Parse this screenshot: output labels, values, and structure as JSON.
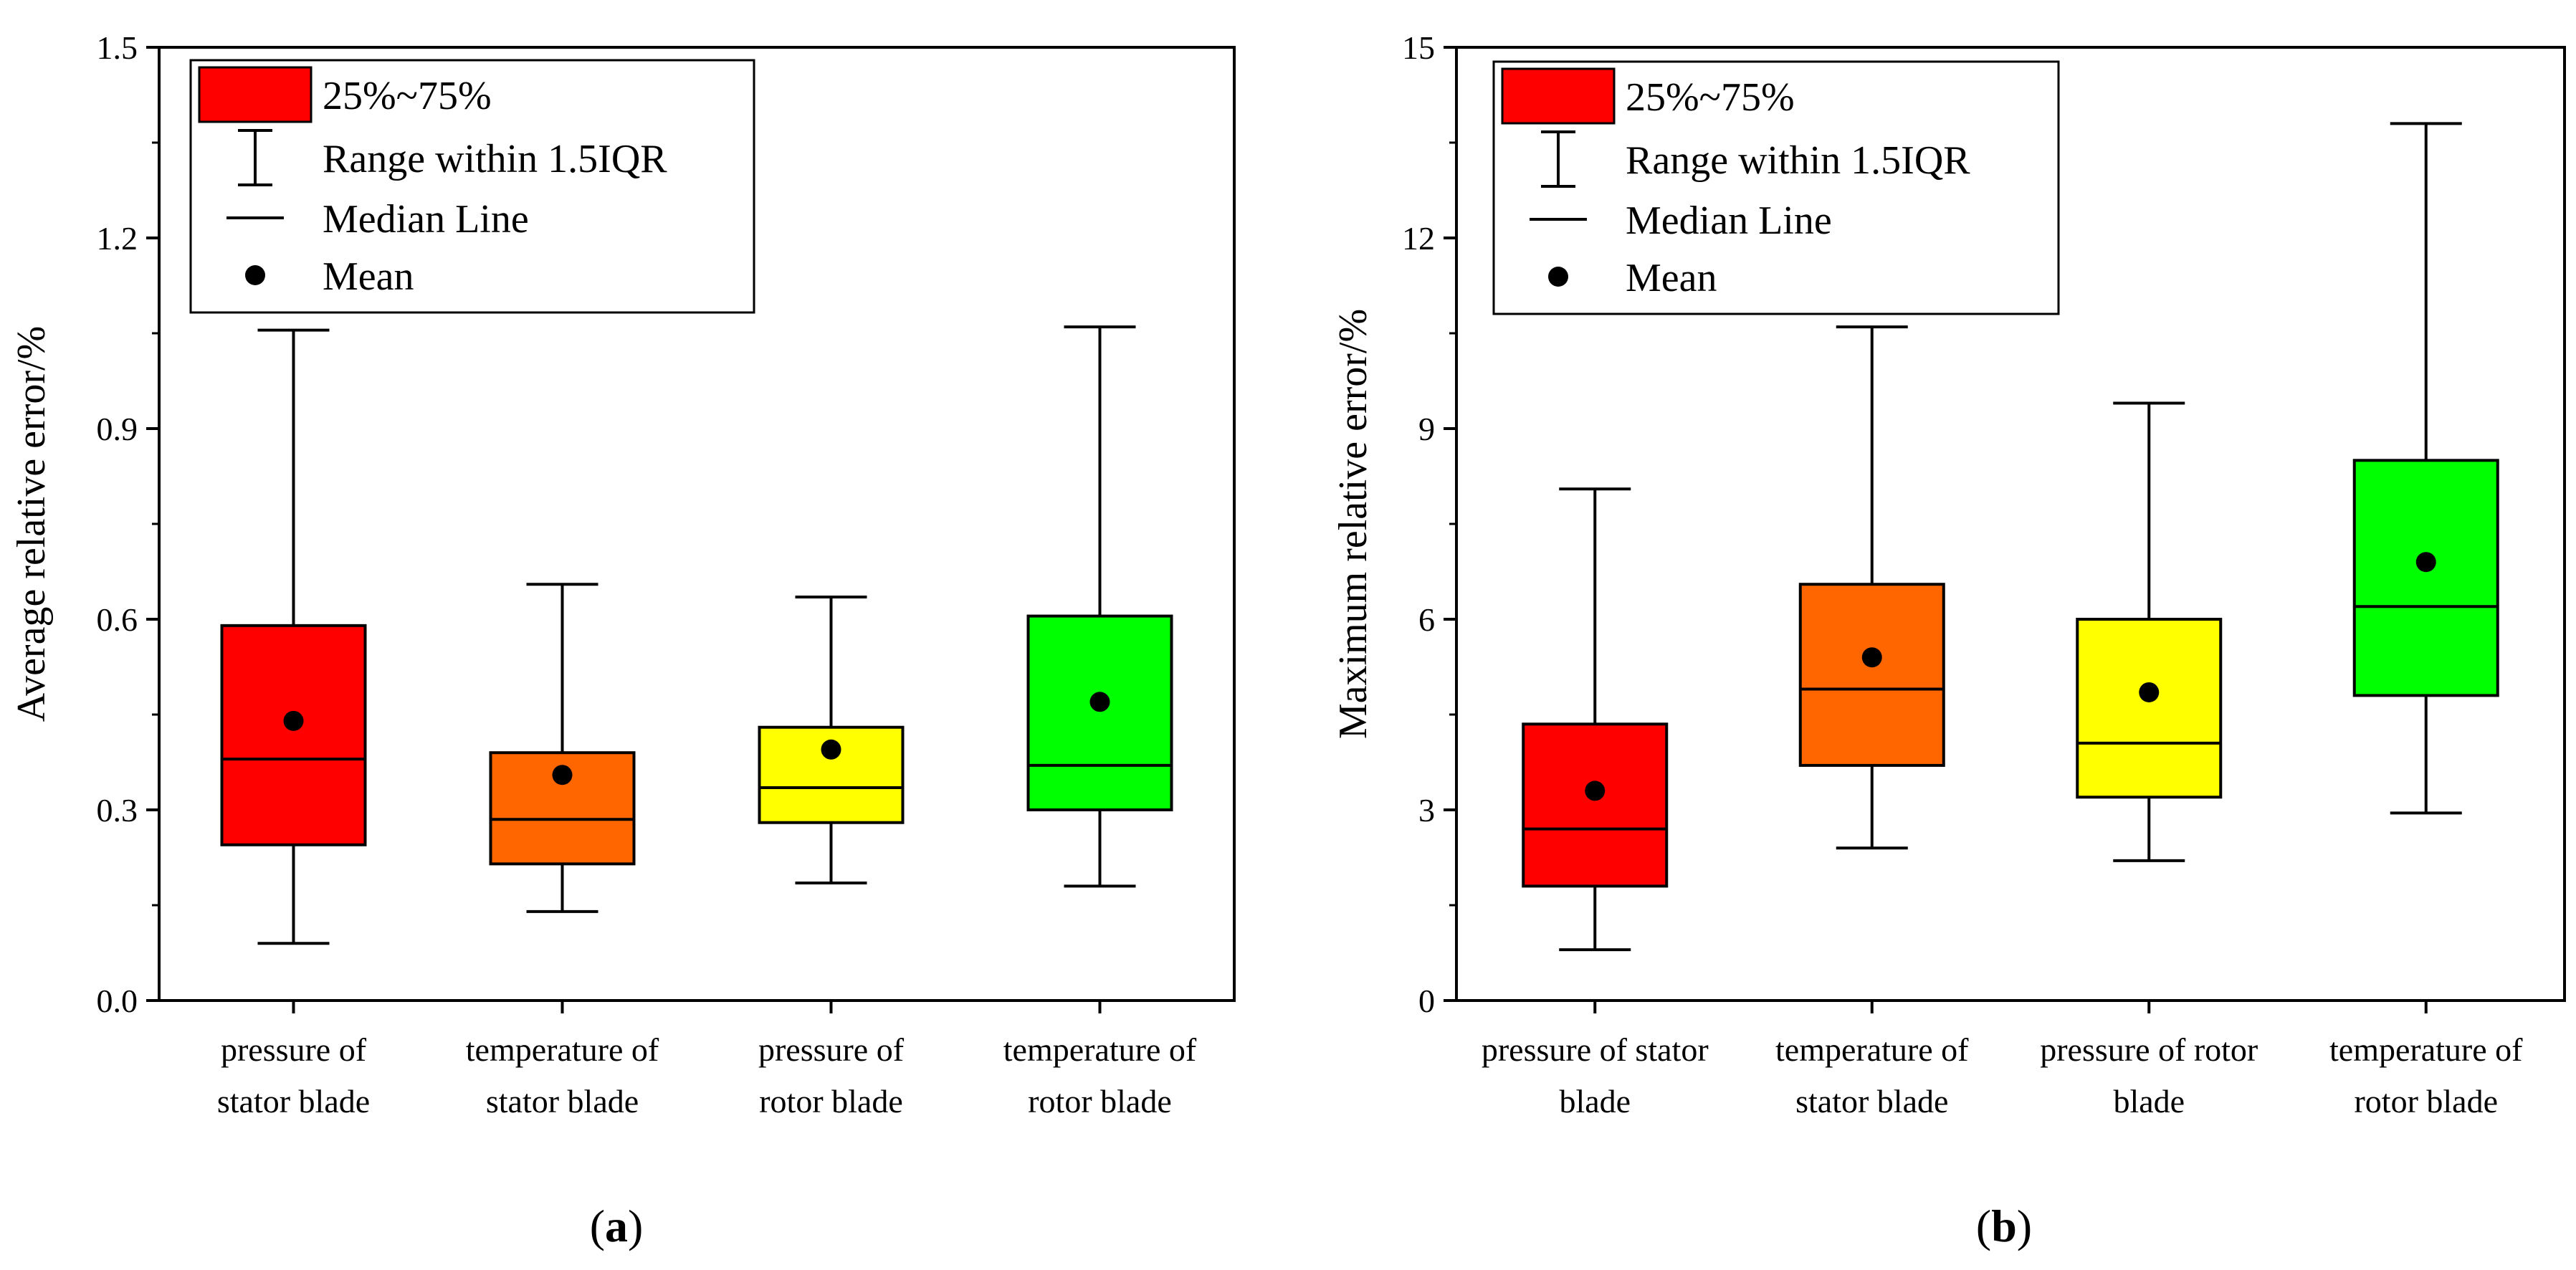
{
  "legend": {
    "box_label": "25%~75%",
    "whisker_label": "Range within 1.5IQR",
    "median_label": "Median Line",
    "mean_label": "Mean"
  },
  "colors": {
    "red": "#ff0000",
    "orange": "#ff6600",
    "yellow": "#ffff00",
    "green": "#00ff00"
  },
  "chart_data": [
    {
      "type": "box",
      "panel": "a",
      "panel_label": "(a)",
      "ylabel": "Average relative error/%",
      "ylim": [
        0,
        1.5
      ],
      "yticks": [
        "0.0",
        "0.3",
        "0.6",
        "0.9",
        "1.2",
        "1.5"
      ],
      "categories": [
        [
          "pressure of",
          "stator blade"
        ],
        [
          "temperature of",
          "stator blade"
        ],
        [
          "pressure of",
          "rotor blade"
        ],
        [
          "temperature of",
          "rotor blade"
        ]
      ],
      "series": [
        {
          "name": "pressure of stator blade",
          "color": "#ff0000",
          "min": 0.09,
          "q1": 0.245,
          "median": 0.38,
          "q3": 0.59,
          "max": 1.055,
          "mean": 0.44
        },
        {
          "name": "temperature of stator blade",
          "color": "#ff6600",
          "min": 0.14,
          "q1": 0.215,
          "median": 0.285,
          "q3": 0.39,
          "max": 0.655,
          "mean": 0.355
        },
        {
          "name": "pressure of rotor blade",
          "color": "#ffff00",
          "min": 0.185,
          "q1": 0.28,
          "median": 0.335,
          "q3": 0.43,
          "max": 0.635,
          "mean": 0.395
        },
        {
          "name": "temperature of rotor blade",
          "color": "#00ff00",
          "min": 0.18,
          "q1": 0.3,
          "median": 0.37,
          "q3": 0.605,
          "max": 1.06,
          "mean": 0.47
        }
      ]
    },
    {
      "type": "box",
      "panel": "b",
      "panel_label": "(b)",
      "ylabel": "Maximum relative error/%",
      "ylim": [
        0,
        15
      ],
      "yticks": [
        "0",
        "3",
        "6",
        "9",
        "12",
        "15"
      ],
      "categories": [
        [
          "pressure of stator",
          "blade"
        ],
        [
          "temperature of",
          "stator blade"
        ],
        [
          "pressure of rotor",
          "blade"
        ],
        [
          "temperature of",
          "rotor blade"
        ]
      ],
      "series": [
        {
          "name": "pressure of stator blade",
          "color": "#ff0000",
          "min": 0.8,
          "q1": 1.8,
          "median": 2.7,
          "q3": 4.35,
          "max": 8.05,
          "mean": 3.3
        },
        {
          "name": "temperature of stator blade",
          "color": "#ff6600",
          "min": 2.4,
          "q1": 3.7,
          "median": 4.9,
          "q3": 6.55,
          "max": 10.6,
          "mean": 5.4
        },
        {
          "name": "pressure of rotor blade",
          "color": "#ffff00",
          "min": 2.2,
          "q1": 3.2,
          "median": 4.05,
          "q3": 6.0,
          "max": 9.4,
          "mean": 4.85
        },
        {
          "name": "temperature of rotor blade",
          "color": "#00ff00",
          "min": 2.95,
          "q1": 4.8,
          "median": 6.2,
          "q3": 8.5,
          "max": 13.8,
          "mean": 6.9
        }
      ]
    }
  ]
}
